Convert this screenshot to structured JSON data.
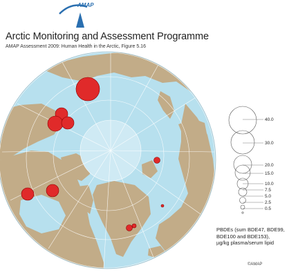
{
  "header": {
    "logo_text": "AMAP",
    "logo_tagline": "Arctic Monitoring and Assessment Programme",
    "title": "Arctic Monitoring and Assessment Programme",
    "subtitle": "AMAP Assessment 2009: Human Health in the Arctic, Figure 5.16"
  },
  "legend": {
    "scale_values": [
      "40.0",
      "30.0",
      "20.0",
      "15.0",
      "10.0",
      "7.5",
      "5.0",
      "2.5",
      "0.5"
    ],
    "caption_lines": [
      "PBDEs (sum BDE47, BDE99,",
      "BDE100 and BDE153),",
      "µg/kg plasma/serum lipid"
    ]
  },
  "copyright": "©AMAP",
  "colors": {
    "ocean": "#b7e0ee",
    "land": "#c2ac88",
    "grid": "#ffffff",
    "marker": "#e02a2a",
    "marker_stroke": "#8a0000"
  }
}
